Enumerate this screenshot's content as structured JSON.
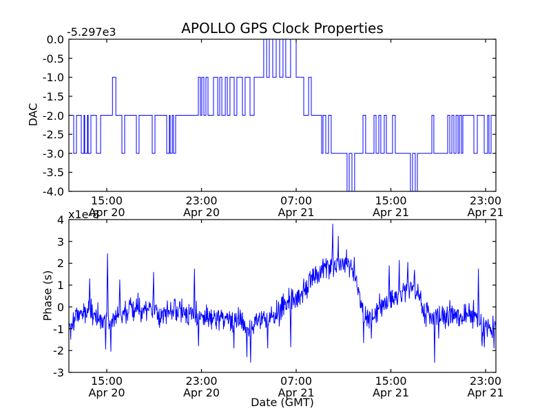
{
  "figure": {
    "title": "APOLLO GPS Clock Properties",
    "background": "#ffffff",
    "frame_color": "#000000",
    "line_color": "#0000ff"
  },
  "chart_data": [
    {
      "type": "line",
      "subtype": "step",
      "title": "APOLLO GPS Clock Properties",
      "ylabel": "DAC",
      "y_offset_text": "-5.297e3",
      "x_unit": "hours since Apr 20 00:00 GMT",
      "xlim": [
        11.8,
        47.87
      ],
      "ylim": [
        -4.0,
        0.0
      ],
      "yticks": [
        0.0,
        -0.5,
        -1.0,
        -1.5,
        -2.0,
        -2.5,
        -3.0,
        -3.5,
        -4.0
      ],
      "ytick_labels": [
        "0.0",
        "-0.5",
        "-1.0",
        "-1.5",
        "-2.0",
        "-2.5",
        "-3.0",
        "-3.5",
        "-4.0"
      ],
      "xticks": [
        15,
        23,
        31,
        39,
        47
      ],
      "xtick_labels": [
        [
          "15:00",
          "Apr 20"
        ],
        [
          "23:00",
          "Apr 20"
        ],
        [
          "07:00",
          "Apr 21"
        ],
        [
          "15:00",
          "Apr 21"
        ],
        [
          "23:00",
          "Apr 21"
        ]
      ],
      "grid": false,
      "legend": null,
      "line_color": "#0000ff",
      "steps": [
        [
          11.8,
          -2
        ],
        [
          12.21,
          -3
        ],
        [
          12.44,
          -2
        ],
        [
          12.85,
          -3
        ],
        [
          13.08,
          -2
        ],
        [
          13.14,
          -3
        ],
        [
          13.37,
          -2
        ],
        [
          13.43,
          -3
        ],
        [
          13.66,
          -2
        ],
        [
          14.13,
          -3
        ],
        [
          14.48,
          -2
        ],
        [
          15.48,
          -1
        ],
        [
          15.77,
          -2
        ],
        [
          16.28,
          -3
        ],
        [
          16.51,
          -2
        ],
        [
          17.5,
          -3
        ],
        [
          17.73,
          -2
        ],
        [
          18.84,
          -3
        ],
        [
          19.07,
          -2
        ],
        [
          20.06,
          -3
        ],
        [
          20.29,
          -2
        ],
        [
          20.35,
          -3
        ],
        [
          20.53,
          -2
        ],
        [
          20.64,
          -3
        ],
        [
          20.82,
          -2
        ],
        [
          22.74,
          -1
        ],
        [
          22.91,
          -2
        ],
        [
          23.03,
          -1
        ],
        [
          23.2,
          -2
        ],
        [
          23.38,
          -1
        ],
        [
          23.55,
          -2
        ],
        [
          24.02,
          -1
        ],
        [
          24.37,
          -2
        ],
        [
          24.54,
          -1
        ],
        [
          24.72,
          -2
        ],
        [
          25.01,
          -1
        ],
        [
          25.18,
          -2
        ],
        [
          25.41,
          -1
        ],
        [
          25.76,
          -2
        ],
        [
          25.99,
          -1
        ],
        [
          26.46,
          -2
        ],
        [
          26.69,
          -1
        ],
        [
          27.1,
          -2
        ],
        [
          27.45,
          -1
        ],
        [
          28.26,
          0
        ],
        [
          28.5,
          -1
        ],
        [
          28.73,
          0
        ],
        [
          29.02,
          -1
        ],
        [
          29.31,
          0
        ],
        [
          29.6,
          -1
        ],
        [
          29.89,
          0
        ],
        [
          30.12,
          -1
        ],
        [
          30.53,
          0
        ],
        [
          31.0,
          -1
        ],
        [
          31.64,
          -2
        ],
        [
          32.05,
          -1
        ],
        [
          32.28,
          -2
        ],
        [
          33.15,
          -3
        ],
        [
          33.27,
          -2
        ],
        [
          33.5,
          -3
        ],
        [
          33.73,
          -2
        ],
        [
          33.96,
          -3
        ],
        [
          35.3,
          -4
        ],
        [
          35.48,
          -3
        ],
        [
          35.71,
          -4
        ],
        [
          35.94,
          -3
        ],
        [
          36.64,
          -2
        ],
        [
          36.87,
          -3
        ],
        [
          37.57,
          -2
        ],
        [
          37.75,
          -3
        ],
        [
          37.98,
          -2
        ],
        [
          38.15,
          -3
        ],
        [
          38.44,
          -2
        ],
        [
          38.62,
          -3
        ],
        [
          39.14,
          -2
        ],
        [
          39.37,
          -3
        ],
        [
          40.65,
          -4
        ],
        [
          40.83,
          -3
        ],
        [
          41.06,
          -4
        ],
        [
          41.24,
          -3
        ],
        [
          42.46,
          -2
        ],
        [
          42.63,
          -3
        ],
        [
          43.8,
          -2
        ],
        [
          43.97,
          -3
        ],
        [
          44.15,
          -2
        ],
        [
          44.32,
          -3
        ],
        [
          44.5,
          -2
        ],
        [
          44.67,
          -3
        ],
        [
          44.79,
          -2
        ],
        [
          44.96,
          -3
        ],
        [
          45.08,
          -2
        ],
        [
          46.01,
          -3
        ],
        [
          46.3,
          -2
        ],
        [
          46.88,
          -3
        ],
        [
          47.17,
          -2
        ],
        [
          47.29,
          -3
        ],
        [
          47.46,
          -2
        ],
        [
          47.87,
          -2
        ]
      ]
    },
    {
      "type": "line",
      "subtype": "noisy",
      "ylabel": "Phase (s)",
      "xlabel": "Date (GMT)",
      "y_multiplier_text": "x1e-8",
      "x_unit": "hours since Apr 20 00:00 GMT",
      "xlim": [
        11.8,
        47.87
      ],
      "ylim": [
        -3,
        4
      ],
      "yticks": [
        4,
        3,
        2,
        1,
        0,
        -1,
        -2,
        -3
      ],
      "ytick_labels": [
        "4",
        "3",
        "2",
        "1",
        "0",
        "-1",
        "-2",
        "-3"
      ],
      "xticks": [
        15,
        23,
        31,
        39,
        47
      ],
      "xtick_labels": [
        [
          "15:00",
          "Apr 20"
        ],
        [
          "23:00",
          "Apr 20"
        ],
        [
          "07:00",
          "Apr 21"
        ],
        [
          "15:00",
          "Apr 21"
        ],
        [
          "23:00",
          "Apr 21"
        ]
      ],
      "grid": false,
      "legend": null,
      "line_color": "#0000ff",
      "n_points": 1150,
      "noise_std": 0.27,
      "trend": [
        [
          11.8,
          -0.8
        ],
        [
          12.3,
          -0.4
        ],
        [
          13.0,
          -0.2
        ],
        [
          13.8,
          -0.3
        ],
        [
          14.6,
          -0.55
        ],
        [
          15.1,
          -0.5
        ],
        [
          15.6,
          -0.55
        ],
        [
          16.2,
          -0.3
        ],
        [
          17.0,
          -0.12
        ],
        [
          18.0,
          -0.18
        ],
        [
          18.8,
          -0.08
        ],
        [
          19.6,
          -0.28
        ],
        [
          20.4,
          -0.12
        ],
        [
          21.2,
          -0.22
        ],
        [
          22.0,
          -0.28
        ],
        [
          22.8,
          -0.25
        ],
        [
          23.6,
          -0.38
        ],
        [
          24.4,
          -0.5
        ],
        [
          25.2,
          -0.6
        ],
        [
          25.8,
          -0.45
        ],
        [
          26.4,
          -0.55
        ],
        [
          26.9,
          -1.05
        ],
        [
          27.4,
          -0.7
        ],
        [
          28.0,
          -0.5
        ],
        [
          28.7,
          -0.65
        ],
        [
          29.4,
          -0.3
        ],
        [
          30.0,
          0.1
        ],
        [
          30.6,
          0.5
        ],
        [
          31.2,
          0.55
        ],
        [
          31.8,
          0.85
        ],
        [
          32.4,
          1.45
        ],
        [
          33.0,
          1.6
        ],
        [
          33.6,
          1.85
        ],
        [
          34.2,
          1.9
        ],
        [
          34.8,
          2.0
        ],
        [
          35.4,
          2.05
        ],
        [
          35.9,
          1.55
        ],
        [
          36.3,
          0.75
        ],
        [
          36.8,
          -0.55
        ],
        [
          37.3,
          -0.45
        ],
        [
          37.8,
          -0.1
        ],
        [
          38.3,
          0.1
        ],
        [
          38.8,
          0.35
        ],
        [
          39.3,
          0.4
        ],
        [
          39.8,
          0.55
        ],
        [
          40.3,
          0.8
        ],
        [
          40.8,
          0.9
        ],
        [
          41.3,
          0.6
        ],
        [
          41.8,
          -0.1
        ],
        [
          42.3,
          -0.45
        ],
        [
          42.8,
          -0.4
        ],
        [
          43.3,
          -0.3
        ],
        [
          43.8,
          -0.42
        ],
        [
          44.4,
          -0.3
        ],
        [
          45.0,
          -0.45
        ],
        [
          45.6,
          -0.28
        ],
        [
          46.1,
          -0.3
        ],
        [
          46.6,
          -0.72
        ],
        [
          47.1,
          -0.85
        ],
        [
          47.5,
          -1.0
        ],
        [
          47.87,
          -1.1
        ]
      ],
      "spikes": [
        [
          11.95,
          -1.5
        ],
        [
          13.55,
          1.3
        ],
        [
          14.9,
          -1.95
        ],
        [
          15.05,
          2.45
        ],
        [
          15.35,
          -2.05
        ],
        [
          16.1,
          1.25
        ],
        [
          18.95,
          1.6
        ],
        [
          22.4,
          1.75
        ],
        [
          22.75,
          -1.8
        ],
        [
          25.75,
          -1.9
        ],
        [
          26.85,
          -2.3
        ],
        [
          27.15,
          -2.55
        ],
        [
          28.6,
          -1.9
        ],
        [
          30.55,
          -1.85
        ],
        [
          34.1,
          3.8
        ],
        [
          34.55,
          3.25
        ],
        [
          36.7,
          -1.65
        ],
        [
          37.35,
          -1.45
        ],
        [
          38.85,
          1.9
        ],
        [
          39.72,
          2.15
        ],
        [
          40.42,
          2.05
        ],
        [
          41.0,
          1.7
        ],
        [
          42.69,
          -2.55
        ],
        [
          43.05,
          -1.45
        ],
        [
          46.4,
          1.75
        ],
        [
          46.7,
          -1.8
        ],
        [
          46.9,
          -1.85
        ],
        [
          47.7,
          -1.9
        ]
      ]
    }
  ]
}
